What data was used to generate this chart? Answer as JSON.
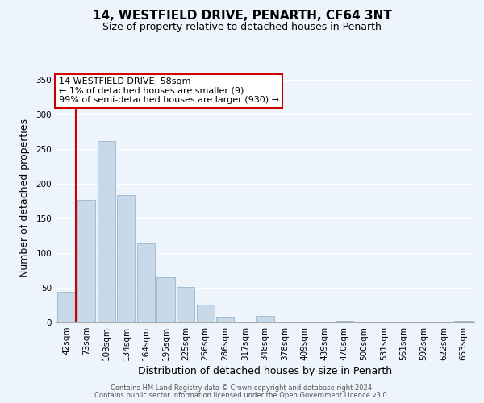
{
  "title": "14, WESTFIELD DRIVE, PENARTH, CF64 3NT",
  "subtitle": "Size of property relative to detached houses in Penarth",
  "xlabel": "Distribution of detached houses by size in Penarth",
  "ylabel": "Number of detached properties",
  "bar_labels": [
    "42sqm",
    "73sqm",
    "103sqm",
    "134sqm",
    "164sqm",
    "195sqm",
    "225sqm",
    "256sqm",
    "286sqm",
    "317sqm",
    "348sqm",
    "378sqm",
    "409sqm",
    "439sqm",
    "470sqm",
    "500sqm",
    "531sqm",
    "561sqm",
    "592sqm",
    "622sqm",
    "653sqm"
  ],
  "bar_values": [
    44,
    176,
    261,
    184,
    114,
    65,
    51,
    25,
    8,
    0,
    9,
    0,
    0,
    0,
    2,
    0,
    0,
    0,
    0,
    0,
    2
  ],
  "bar_color": "#c8d9ea",
  "bar_edge_color": "#9ab5cc",
  "vline_color": "#cc0000",
  "annotation_text": "14 WESTFIELD DRIVE: 58sqm\n← 1% of detached houses are smaller (9)\n99% of semi-detached houses are larger (930) →",
  "annotation_box_color": "white",
  "annotation_box_edge": "#cc0000",
  "ylim": [
    0,
    360
  ],
  "yticks": [
    0,
    50,
    100,
    150,
    200,
    250,
    300,
    350
  ],
  "bg_color": "#eef4fb",
  "plot_bg_color": "#eef4fb",
  "footer_line1": "Contains HM Land Registry data © Crown copyright and database right 2024.",
  "footer_line2": "Contains public sector information licensed under the Open Government Licence v3.0.",
  "title_fontsize": 11,
  "subtitle_fontsize": 9,
  "axis_label_fontsize": 9,
  "tick_fontsize": 7.5,
  "footer_fontsize": 6
}
